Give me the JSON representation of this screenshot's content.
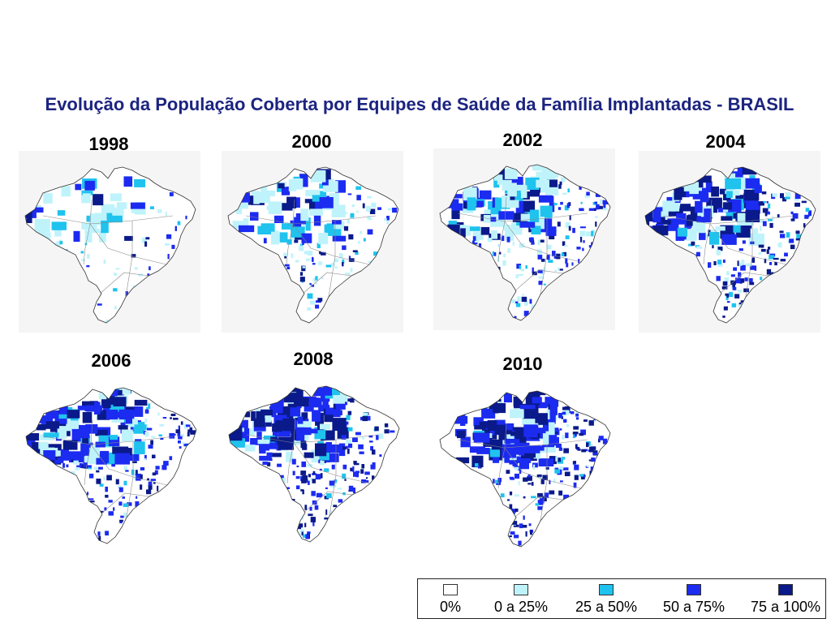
{
  "title": "Evolução da População Coberta por Equipes de Saúde da Família Implantadas - BRASIL",
  "colors": {
    "c0": "#ffffff",
    "c1": "#bff3fb",
    "c2": "#1fc3ee",
    "c3": "#1c2bf0",
    "c4": "#0a1a8a",
    "border": "#333333",
    "panel_bg": "#f5f5f5"
  },
  "maps": [
    {
      "year": "1998",
      "levels": [
        0.72,
        0.16,
        0.06,
        0.04,
        0.02
      ]
    },
    {
      "year": "2000",
      "levels": [
        0.42,
        0.28,
        0.08,
        0.14,
        0.08
      ]
    },
    {
      "year": "2002",
      "levels": [
        0.2,
        0.26,
        0.1,
        0.26,
        0.18
      ]
    },
    {
      "year": "2004",
      "levels": [
        0.12,
        0.2,
        0.1,
        0.3,
        0.28
      ]
    },
    {
      "year": "2006",
      "levels": [
        0.07,
        0.16,
        0.08,
        0.4,
        0.29
      ]
    },
    {
      "year": "2008",
      "levels": [
        0.05,
        0.13,
        0.07,
        0.43,
        0.32
      ]
    },
    {
      "year": "2010",
      "levels": [
        0.04,
        0.12,
        0.06,
        0.43,
        0.35
      ]
    }
  ],
  "legend": {
    "items": [
      {
        "label": "0%",
        "color_key": "c0"
      },
      {
        "label": "0 a 25%",
        "color_key": "c1"
      },
      {
        "label": "25 a 50%",
        "color_key": "c2"
      },
      {
        "label": "50 a 75%",
        "color_key": "c3"
      },
      {
        "label": "75 a 100%",
        "color_key": "c4"
      }
    ]
  }
}
